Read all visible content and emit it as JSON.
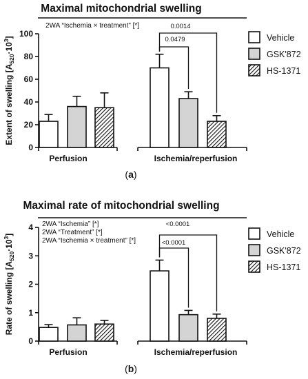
{
  "chart_data": [
    {
      "type": "bar",
      "title": "Maximal mitochondrial swelling",
      "ylabel_main": "Extent of swelling [A",
      "ylabel_sub": "520",
      "ylabel_mid": "·10",
      "ylabel_sup": "3",
      "ylabel_end": "]",
      "ylim": [
        0,
        100
      ],
      "yticks": [
        0,
        20,
        40,
        60,
        80,
        100
      ],
      "categories": [
        "Perfusion",
        "Ischemia/reperfusion"
      ],
      "series": [
        {
          "name": "Vehicle",
          "fill": "white",
          "values": [
            23,
            70
          ],
          "errors": [
            6,
            12
          ]
        },
        {
          "name": "GSK'872",
          "fill": "gray",
          "values": [
            36,
            43
          ],
          "errors": [
            9,
            6
          ]
        },
        {
          "name": "HS-1371",
          "fill": "hatch",
          "values": [
            35,
            23
          ],
          "errors": [
            13,
            5
          ]
        }
      ],
      "stats": [
        "2WA “Ischemia × treatment” [*]"
      ],
      "comparisons": [
        {
          "from": 0,
          "to": 1,
          "label": "0.0479"
        },
        {
          "from": 0,
          "to": 2,
          "label": "0.0014"
        }
      ],
      "panel_label_pre": "(",
      "panel_label_letter": "a",
      "panel_label_post": ")"
    },
    {
      "type": "bar",
      "title": "Maximal rate of mitochondrial swelling",
      "ylabel_main": "Rate of swelling [A",
      "ylabel_sub": "520",
      "ylabel_mid": "·10",
      "ylabel_sup": "3",
      "ylabel_end": "]",
      "ylim": [
        0,
        4
      ],
      "yticks": [
        0,
        1,
        2,
        3,
        4
      ],
      "categories": [
        "Perfusion",
        "Ischemia/reperfusion"
      ],
      "series": [
        {
          "name": "Vehicle",
          "fill": "white",
          "values": [
            0.48,
            2.47
          ],
          "errors": [
            0.1,
            0.38
          ]
        },
        {
          "name": "GSK'872",
          "fill": "gray",
          "values": [
            0.57,
            0.93
          ],
          "errors": [
            0.25,
            0.15
          ]
        },
        {
          "name": "HS-1371",
          "fill": "hatch",
          "values": [
            0.6,
            0.8
          ],
          "errors": [
            0.13,
            0.15
          ]
        }
      ],
      "stats": [
        "2WA “Ischemia” [*]",
        "2WA “Treatment” [*]",
        "2WA “Ischemia × treatment” [*]"
      ],
      "comparisons": [
        {
          "from": 0,
          "to": 1,
          "label": "<0.0001"
        },
        {
          "from": 0,
          "to": 2,
          "label": "<0.0001"
        }
      ],
      "panel_label_pre": "(",
      "panel_label_letter": "b",
      "panel_label_post": ")"
    }
  ],
  "colors": {
    "axis": "#111111",
    "white_bar": "#ffffff",
    "gray_bar": "#d4d4d4",
    "hatch_bg": "#ffffff",
    "hatch_line": "#111111"
  }
}
